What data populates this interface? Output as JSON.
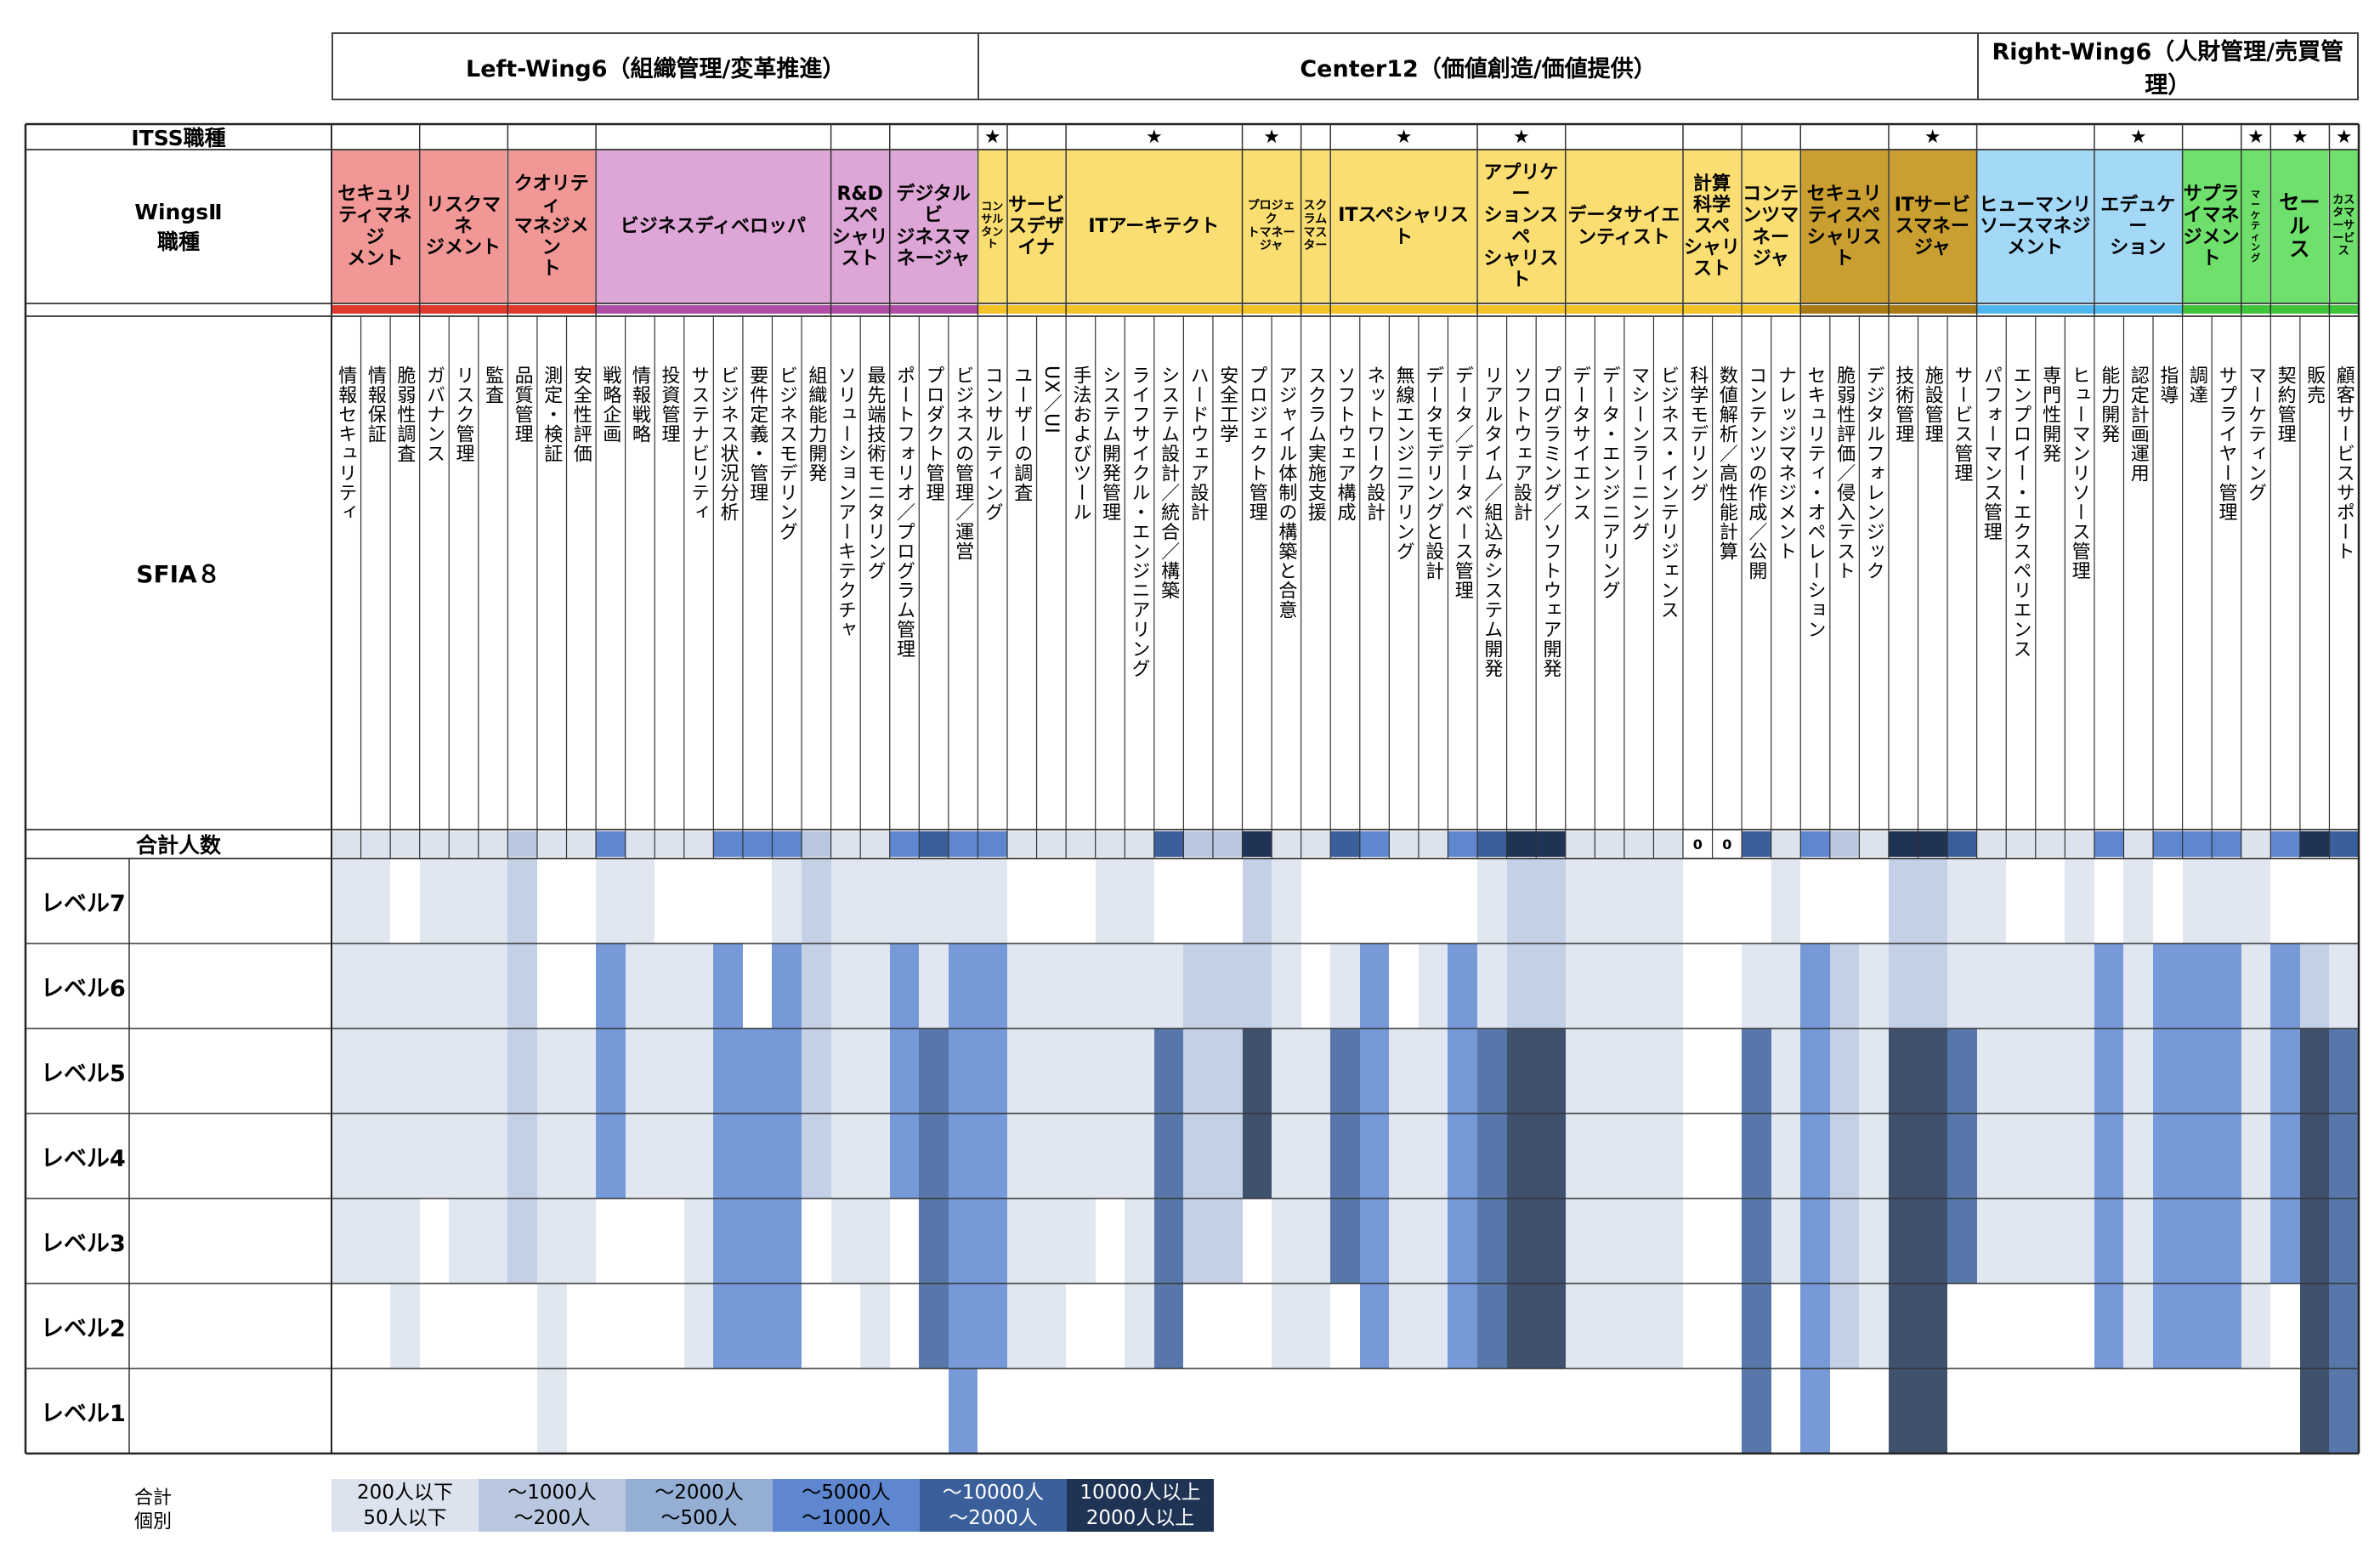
{
  "wings": [
    {
      "name": "Left-Wing6（組織管理/変革推進）",
      "startCol": 0,
      "endCol": 22
    },
    {
      "name": "Center12（価値創造/価値提供）",
      "startCol": 22,
      "endCol": 56
    },
    {
      "name": "Right-Wing6（人財管理/売買管理）",
      "startCol": 56,
      "endCol": 69
    }
  ],
  "row_labels": {
    "itss": "ITSS職種",
    "wings2": "WingsⅡ\n職種",
    "sfia": "SFIA８",
    "total": "合計人数"
  },
  "levels": [
    "レベル7",
    "レベル6",
    "レベル5",
    "レベル4",
    "レベル3",
    "レベル2",
    "レベル1"
  ],
  "roles": [
    {
      "name": "セキュリ\nティマネジ\nメント",
      "start": 0,
      "span": 3,
      "bg": "#f19896",
      "star": false,
      "fs": 22
    },
    {
      "name": "リスクマネ\nジメント",
      "start": 3,
      "span": 3,
      "bg": "#f19896",
      "star": false,
      "fs": 22
    },
    {
      "name": "クオリティ\nマネジメン\nト",
      "start": 6,
      "span": 3,
      "bg": "#f19896",
      "star": false,
      "fs": 22
    },
    {
      "name": "ビジネスディベロッパ",
      "start": 9,
      "span": 8,
      "bg": "#dda6d6",
      "star": false,
      "fs": 22
    },
    {
      "name": "R&D\nスペ\nシャリ\nスト",
      "start": 17,
      "span": 2,
      "bg": "#dda6d6",
      "star": false,
      "fs": 22
    },
    {
      "name": "デジタルビ\nジネスマ\nネージャ",
      "start": 19,
      "span": 3,
      "bg": "#dda6d6",
      "star": false,
      "fs": 22
    },
    {
      "name": "コン\nサル\nタン\nト",
      "start": 22,
      "span": 1,
      "bg": "#fbde71",
      "star": true,
      "fs": 13
    },
    {
      "name": "サービ\nスデザ\nイナ",
      "start": 23,
      "span": 2,
      "bg": "#fbde71",
      "star": false,
      "fs": 22
    },
    {
      "name": "ITアーキテクト",
      "start": 25,
      "span": 6,
      "bg": "#fbde71",
      "star": true,
      "fs": 22
    },
    {
      "name": "プロジェク\nトマネー\nジャ",
      "start": 31,
      "span": 2,
      "bg": "#fbde71",
      "star": true,
      "fs": 14
    },
    {
      "name": "スク\nラム\nマス\nター",
      "start": 33,
      "span": 1,
      "bg": "#fbde71",
      "star": false,
      "fs": 14
    },
    {
      "name": "ITスペシャリスト",
      "start": 34,
      "span": 5,
      "bg": "#fbde71",
      "star": true,
      "fs": 22
    },
    {
      "name": "アプリケー\nションスペ\nシャリスト",
      "start": 39,
      "span": 3,
      "bg": "#fbde71",
      "star": true,
      "fs": 22
    },
    {
      "name": "データサイエ\nンティスト",
      "start": 42,
      "span": 4,
      "bg": "#fbde71",
      "star": false,
      "fs": 22
    },
    {
      "name": "計算\n科学\nスペ\nシャリ\nスト",
      "start": 46,
      "span": 2,
      "bg": "#fbde71",
      "star": false,
      "fs": 22
    },
    {
      "name": "コンテ\nンツマ\nネー\nジャ",
      "start": 48,
      "span": 2,
      "bg": "#fbde71",
      "star": false,
      "fs": 22
    },
    {
      "name": "セキュリ\nティスペ\nシャリスト",
      "start": 50,
      "span": 3,
      "bg": "#c99f31",
      "star": false,
      "fs": 22
    },
    {
      "name": "ITサービ\nスマネー\nジャ",
      "start": 53,
      "span": 3,
      "bg": "#c99f31",
      "star": true,
      "fs": 22
    },
    {
      "name": "ヒューマンリ\nソースマネジ\nメント",
      "start": 56,
      "span": 4,
      "bg": "#a3d8f6",
      "star": false,
      "fs": 22
    },
    {
      "name": "エデュケー\nション",
      "start": 60,
      "span": 3,
      "bg": "#a3d8f6",
      "star": true,
      "fs": 22
    },
    {
      "name": "サプラ\nイマネ\nジメント",
      "start": 63,
      "span": 2,
      "bg": "#6ee06b",
      "star": false,
      "fs": 22
    },
    {
      "name": "マ\nー\nケ\nテ\nィ\nン\nグ",
      "start": 65,
      "span": 1,
      "bg": "#6ee06b",
      "star": true,
      "fs": 11
    },
    {
      "name": "セール\nス",
      "start": 66,
      "span": 2,
      "bg": "#6ee06b",
      "star": true,
      "fs": 24
    },
    {
      "name": "カス\nタマ\nーサ\nービ\nス",
      "start": 68,
      "span": 1,
      "bg": "#6ee06b",
      "star": true,
      "fs": 13
    }
  ],
  "skills": [
    {
      "name": "情報セキュリティ",
      "fill": "#dce3ee",
      "lv": [
        1,
        1,
        1,
        1,
        1,
        0,
        0
      ]
    },
    {
      "name": "情報保証",
      "fill": "#dce3ee",
      "lv": [
        1,
        1,
        1,
        1,
        1,
        0,
        0
      ]
    },
    {
      "name": "脆弱性調査",
      "fill": "#dce3ee",
      "lv": [
        0,
        1,
        1,
        1,
        1,
        1,
        0
      ]
    },
    {
      "name": "ガバナンス",
      "fill": "#dce3ee",
      "lv": [
        1,
        1,
        1,
        1,
        0,
        0,
        0
      ]
    },
    {
      "name": "リスク管理",
      "fill": "#dce3ee",
      "lv": [
        1,
        1,
        1,
        1,
        1,
        0,
        0
      ]
    },
    {
      "name": "監査",
      "fill": "#dce3ee",
      "lv": [
        1,
        1,
        1,
        1,
        1,
        0,
        0
      ]
    },
    {
      "name": "品質管理",
      "fill": "#b9c8e0",
      "lv": [
        1,
        1,
        1,
        1,
        1,
        0,
        0
      ]
    },
    {
      "name": "測定・検証",
      "fill": "#dce3ee",
      "lv": [
        0,
        0,
        1,
        1,
        1,
        1,
        1
      ]
    },
    {
      "name": "安全性評価",
      "fill": "#dce3ee",
      "lv": [
        0,
        0,
        1,
        1,
        1,
        0,
        0
      ]
    },
    {
      "name": "戦略企画",
      "fill": "#5e87d0",
      "lv": [
        1,
        1,
        1,
        1,
        0,
        0,
        0
      ]
    },
    {
      "name": "情報戦略",
      "fill": "#dce3ee",
      "lv": [
        1,
        1,
        1,
        1,
        0,
        0,
        0
      ]
    },
    {
      "name": "投資管理",
      "fill": "#dce3ee",
      "lv": [
        0,
        1,
        1,
        1,
        0,
        0,
        0
      ]
    },
    {
      "name": "サステナビリティ",
      "fill": "#dce3ee",
      "lv": [
        0,
        1,
        1,
        1,
        1,
        1,
        0
      ]
    },
    {
      "name": "ビジネス状況分析",
      "fill": "#5e87d0",
      "lv": [
        0,
        1,
        1,
        1,
        1,
        1,
        0
      ]
    },
    {
      "name": "要件定義・管理",
      "fill": "#5e87d0",
      "lv": [
        0,
        0,
        1,
        1,
        1,
        1,
        0
      ]
    },
    {
      "name": "ビジネスモデリング",
      "fill": "#5e87d0",
      "lv": [
        1,
        1,
        1,
        1,
        1,
        1,
        0
      ]
    },
    {
      "name": "組織能力開発",
      "fill": "#b9c8e0",
      "lv": [
        1,
        1,
        1,
        1,
        0,
        0,
        0
      ]
    },
    {
      "name": "ソリューションアーキテクチャ",
      "fill": "#dce3ee",
      "lv": [
        1,
        1,
        1,
        1,
        1,
        0,
        0
      ]
    },
    {
      "name": "最先端技術モニタリング",
      "fill": "#dce3ee",
      "lv": [
        1,
        1,
        1,
        1,
        1,
        1,
        0
      ]
    },
    {
      "name": "ポートフォリオ／プログラム管理",
      "fill": "#5e87d0",
      "lv": [
        1,
        1,
        1,
        1,
        0,
        0,
        0
      ]
    },
    {
      "name": "プロダクト管理",
      "fill": "#3a5f9b",
      "lv": [
        1,
        1,
        1,
        1,
        1,
        1,
        0
      ]
    },
    {
      "name": "ビジネスの管理／運営",
      "fill": "#5e87d0",
      "lv": [
        1,
        1,
        1,
        1,
        1,
        1,
        1
      ]
    },
    {
      "name": "コンサルティング",
      "fill": "#5e87d0",
      "lv": [
        1,
        1,
        1,
        1,
        1,
        1,
        0
      ]
    },
    {
      "name": "ユーザーの調査",
      "fill": "#dce3ee",
      "lv": [
        0,
        1,
        1,
        1,
        1,
        1,
        0
      ]
    },
    {
      "name": "UX／UI",
      "fill": "#dce3ee",
      "lv": [
        0,
        1,
        1,
        1,
        1,
        1,
        0
      ]
    },
    {
      "name": "手法およびツール",
      "fill": "#dce3ee",
      "lv": [
        0,
        1,
        1,
        1,
        1,
        0,
        0
      ]
    },
    {
      "name": "システム開発管理",
      "fill": "#dce3ee",
      "lv": [
        1,
        1,
        1,
        1,
        0,
        0,
        0
      ]
    },
    {
      "name": "ライフサイクル・エンジニアリング",
      "fill": "#dce3ee",
      "lv": [
        1,
        1,
        1,
        1,
        1,
        1,
        0
      ]
    },
    {
      "name": "システム設計／統合／構築",
      "fill": "#3a5f9b",
      "lv": [
        0,
        1,
        1,
        1,
        1,
        1,
        0
      ]
    },
    {
      "name": "ハードウェア設計",
      "fill": "#b9c8e0",
      "lv": [
        0,
        1,
        1,
        1,
        1,
        0,
        0
      ]
    },
    {
      "name": "安全工学",
      "fill": "#b9c8e0",
      "lv": [
        0,
        1,
        1,
        1,
        1,
        0,
        0
      ]
    },
    {
      "name": "プロジェクト管理",
      "fill": "#1f3354",
      "lv": [
        1,
        1,
        1,
        1,
        0,
        0,
        0
      ]
    },
    {
      "name": "アジャイル体制の構築と合意",
      "fill": "#dce3ee",
      "lv": [
        1,
        1,
        1,
        1,
        1,
        1,
        0
      ]
    },
    {
      "name": "スクラム実施支援",
      "fill": "#dce3ee",
      "lv": [
        0,
        0,
        1,
        1,
        1,
        1,
        0
      ]
    },
    {
      "name": "ソフトウェア構成",
      "fill": "#3a5f9b",
      "lv": [
        0,
        1,
        1,
        1,
        1,
        0,
        0
      ]
    },
    {
      "name": "ネットワーク設計",
      "fill": "#5e87d0",
      "lv": [
        0,
        1,
        1,
        1,
        1,
        1,
        0
      ]
    },
    {
      "name": "無線エンジニアリング",
      "fill": "#dce3ee",
      "lv": [
        0,
        0,
        1,
        1,
        1,
        1,
        0
      ]
    },
    {
      "name": "データモデリングと設計",
      "fill": "#dce3ee",
      "lv": [
        0,
        1,
        1,
        1,
        1,
        1,
        0
      ]
    },
    {
      "name": "データ／データベース管理",
      "fill": "#5e87d0",
      "lv": [
        0,
        1,
        1,
        1,
        1,
        1,
        0
      ]
    },
    {
      "name": "リアルタイム／組込みシステム開発",
      "fill": "#3a5f9b",
      "lv": [
        1,
        1,
        1,
        1,
        1,
        1,
        0
      ]
    },
    {
      "name": "ソフトウェア設計",
      "fill": "#1f3354",
      "lv": [
        1,
        1,
        1,
        1,
        1,
        1,
        0
      ]
    },
    {
      "name": "プログラミング／ソフトウェア開発",
      "fill": "#1f3354",
      "lv": [
        1,
        1,
        1,
        1,
        1,
        1,
        0
      ]
    },
    {
      "name": "データサイエンス",
      "fill": "#dce3ee",
      "lv": [
        1,
        1,
        1,
        1,
        1,
        1,
        0
      ]
    },
    {
      "name": "データ・エンジニアリング",
      "fill": "#dce3ee",
      "lv": [
        1,
        1,
        1,
        1,
        1,
        1,
        0
      ]
    },
    {
      "name": "マシーンラーニング",
      "fill": "#dce3ee",
      "lv": [
        1,
        1,
        1,
        1,
        1,
        1,
        0
      ]
    },
    {
      "name": "ビジネス・インテリジェンス",
      "fill": "#dce3ee",
      "lv": [
        1,
        1,
        1,
        1,
        1,
        1,
        0
      ]
    },
    {
      "name": "科学モデリング",
      "fill": "#bdbdbd",
      "lv": [
        0,
        0,
        0,
        0,
        0,
        0,
        0
      ],
      "total_label": "0"
    },
    {
      "name": "数値解析／高性能計算",
      "fill": "#bdbdbd",
      "lv": [
        0,
        0,
        0,
        0,
        0,
        0,
        0
      ],
      "total_label": "0"
    },
    {
      "name": "コンテンツの作成／公開",
      "fill": "#3a5f9b",
      "lv": [
        0,
        1,
        1,
        1,
        1,
        1,
        1
      ]
    },
    {
      "name": "ナレッジマネジメント",
      "fill": "#dce3ee",
      "lv": [
        1,
        1,
        1,
        1,
        1,
        0,
        0
      ]
    },
    {
      "name": "セキュリティ・オペレーション",
      "fill": "#5e87d0",
      "lv": [
        0,
        1,
        1,
        1,
        1,
        1,
        1
      ]
    },
    {
      "name": "脆弱性評価／侵入テスト",
      "fill": "#b9c8e0",
      "lv": [
        0,
        1,
        1,
        1,
        1,
        1,
        0
      ]
    },
    {
      "name": "デジタルフォレンジック",
      "fill": "#dce3ee",
      "lv": [
        0,
        1,
        1,
        1,
        1,
        1,
        0
      ]
    },
    {
      "name": "技術管理",
      "fill": "#1f3354",
      "lv": [
        1,
        1,
        1,
        1,
        1,
        1,
        1
      ]
    },
    {
      "name": "施設管理",
      "fill": "#1f3354",
      "lv": [
        1,
        1,
        1,
        1,
        1,
        1,
        1
      ]
    },
    {
      "name": "サービス管理",
      "fill": "#3a5f9b",
      "lv": [
        1,
        1,
        1,
        1,
        1,
        0,
        0
      ]
    },
    {
      "name": "パフォーマンス管理",
      "fill": "#dce3ee",
      "lv": [
        1,
        1,
        1,
        1,
        1,
        0,
        0
      ]
    },
    {
      "name": "エンプロイー・エクスペリエンス",
      "fill": "#dce3ee",
      "lv": [
        0,
        1,
        1,
        1,
        1,
        0,
        0
      ]
    },
    {
      "name": "専門性開発",
      "fill": "#dce3ee",
      "lv": [
        0,
        1,
        1,
        1,
        1,
        0,
        0
      ]
    },
    {
      "name": "ヒューマンリソース管理",
      "fill": "#dce3ee",
      "lv": [
        1,
        1,
        1,
        1,
        1,
        0,
        0
      ]
    },
    {
      "name": "能力開発",
      "fill": "#5e87d0",
      "lv": [
        0,
        1,
        1,
        1,
        1,
        1,
        0
      ]
    },
    {
      "name": "認定計画運用",
      "fill": "#dce3ee",
      "lv": [
        1,
        1,
        1,
        1,
        1,
        1,
        0
      ]
    },
    {
      "name": "指導",
      "fill": "#5e87d0",
      "lv": [
        0,
        1,
        1,
        1,
        1,
        1,
        0
      ]
    },
    {
      "name": "調達",
      "fill": "#5e87d0",
      "lv": [
        1,
        1,
        1,
        1,
        1,
        1,
        0
      ]
    },
    {
      "name": "サプライヤー管理",
      "fill": "#5e87d0",
      "lv": [
        1,
        1,
        1,
        1,
        1,
        1,
        0
      ]
    },
    {
      "name": "マーケティング",
      "fill": "#dce3ee",
      "lv": [
        1,
        1,
        1,
        1,
        1,
        1,
        0
      ]
    },
    {
      "name": "契約管理",
      "fill": "#5e87d0",
      "lv": [
        0,
        1,
        1,
        1,
        1,
        0,
        0
      ]
    },
    {
      "name": "販売",
      "fill": "#1f3354",
      "lv": [
        0,
        1,
        1,
        1,
        1,
        1,
        1
      ]
    },
    {
      "name": "顧客サービスサポート",
      "fill": "#3a5f9b",
      "lv": [
        0,
        1,
        1,
        1,
        1,
        1,
        1
      ]
    }
  ],
  "legend": {
    "row1_label": "合計",
    "row2_label": "個別",
    "items": [
      {
        "text": "200人以下\n50人以下",
        "bg": "#dce3ee",
        "fg": "#000000"
      },
      {
        "text": "～1000人\n～200人",
        "bg": "#b9c8e0",
        "fg": "#000000"
      },
      {
        "text": "～2000人\n～500人",
        "bg": "#94aed4",
        "fg": "#000000"
      },
      {
        "text": "～5000人\n～1000人",
        "bg": "#5e87d0",
        "fg": "#000000"
      },
      {
        "text": "～10000人\n～2000人",
        "bg": "#3a5f9b",
        "fg": "#ffffff"
      },
      {
        "text": "10000人以上\n2000人以上",
        "bg": "#1f3354",
        "fg": "#ffffff"
      }
    ]
  }
}
